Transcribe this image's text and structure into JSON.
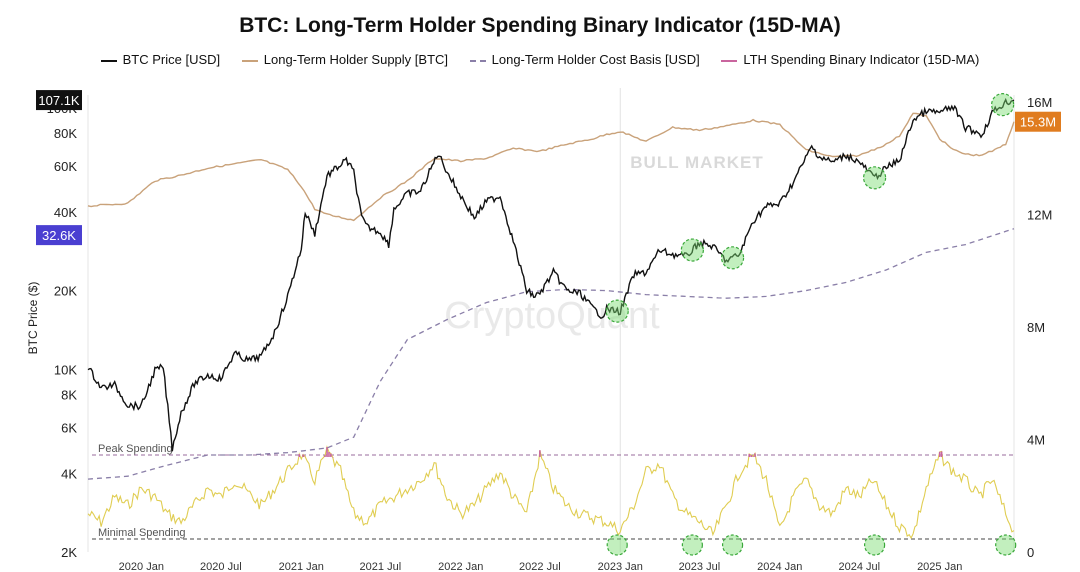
{
  "chart_data": {
    "type": "line",
    "title": "BTC: Long-Term Holder Spending Binary Indicator (15D-MA)",
    "ylabel": "BTC Price ($)",
    "y_left_scale": "log",
    "y_left_ticks": [
      {
        "value": 2000,
        "label": "2K"
      },
      {
        "value": 4000,
        "label": "4K"
      },
      {
        "value": 6000,
        "label": "6K"
      },
      {
        "value": 8000,
        "label": "8K"
      },
      {
        "value": 10000,
        "label": "10K"
      },
      {
        "value": 20000,
        "label": "20K"
      },
      {
        "value": 40000,
        "label": "40K"
      },
      {
        "value": 60000,
        "label": "60K"
      },
      {
        "value": 80000,
        "label": "80K"
      },
      {
        "value": 100000,
        "label": "100K"
      }
    ],
    "y_right_ticks": [
      {
        "value": 0,
        "label": "0"
      },
      {
        "value": 4000000,
        "label": "4M"
      },
      {
        "value": 8000000,
        "label": "8M"
      },
      {
        "value": 12000000,
        "label": "12M"
      },
      {
        "value": 16000000,
        "label": "16M"
      }
    ],
    "x_ticks": [
      "2020 Jan",
      "2020 Jul",
      "2021 Jan",
      "2021 Jul",
      "2022 Jan",
      "2022 Jul",
      "2023 Jan",
      "2023 Jul",
      "2024 Jan",
      "2024 Jul",
      "2025 Jan"
    ],
    "x_tick_dates": [
      "2020-01-01",
      "2020-07-01",
      "2021-01-01",
      "2021-07-01",
      "2022-01-01",
      "2022-07-01",
      "2023-01-01",
      "2023-07-01",
      "2024-01-01",
      "2024-07-01",
      "2025-01-01"
    ],
    "x_range": [
      "2019-09-01",
      "2025-06-20"
    ],
    "legend_position": "top",
    "series": [
      {
        "name": "BTC Price [USD]",
        "axis": "left",
        "color": "#111111",
        "x": [
          "2019-09-01",
          "2019-10-01",
          "2019-11-01",
          "2019-12-01",
          "2020-01-01",
          "2020-02-01",
          "2020-02-20",
          "2020-03-12",
          "2020-04-01",
          "2020-05-01",
          "2020-06-01",
          "2020-07-01",
          "2020-08-01",
          "2020-09-01",
          "2020-10-01",
          "2020-11-01",
          "2020-12-01",
          "2021-01-01",
          "2021-01-10",
          "2021-02-01",
          "2021-03-01",
          "2021-04-14",
          "2021-05-01",
          "2021-05-19",
          "2021-06-01",
          "2021-07-01",
          "2021-07-20",
          "2021-08-01",
          "2021-09-01",
          "2021-10-01",
          "2021-11-10",
          "2021-12-01",
          "2022-01-01",
          "2022-02-01",
          "2022-03-01",
          "2022-04-01",
          "2022-05-01",
          "2022-06-01",
          "2022-06-20",
          "2022-07-01",
          "2022-08-01",
          "2022-09-01",
          "2022-10-01",
          "2022-11-01",
          "2022-11-21",
          "2022-12-01",
          "2023-01-01",
          "2023-02-01",
          "2023-03-01",
          "2023-04-01",
          "2023-05-01",
          "2023-06-01",
          "2023-07-01",
          "2023-08-01",
          "2023-09-01",
          "2023-10-01",
          "2023-11-01",
          "2023-12-01",
          "2024-01-01",
          "2024-02-01",
          "2024-03-14",
          "2024-04-01",
          "2024-05-01",
          "2024-06-01",
          "2024-07-01",
          "2024-08-05",
          "2024-09-01",
          "2024-10-01",
          "2024-11-01",
          "2024-12-01",
          "2025-01-01",
          "2025-02-01",
          "2025-03-01",
          "2025-04-09",
          "2025-05-01",
          "2025-06-01",
          "2025-06-20"
        ],
        "values": [
          10200,
          8500,
          8700,
          7300,
          7200,
          9900,
          10200,
          5000,
          6800,
          8800,
          9500,
          9200,
          11500,
          10800,
          11200,
          13800,
          19000,
          29000,
          40000,
          33000,
          55000,
          63000,
          57000,
          38000,
          35000,
          33500,
          30000,
          41000,
          47000,
          48000,
          67000,
          57000,
          46000,
          38000,
          44000,
          46000,
          31000,
          20000,
          19000,
          19500,
          23500,
          20000,
          19500,
          17000,
          16000,
          17000,
          16600,
          23000,
          23500,
          28500,
          27500,
          27000,
          30500,
          29500,
          26000,
          27500,
          37000,
          42000,
          43000,
          52000,
          71000,
          65000,
          62000,
          66000,
          62000,
          54000,
          59000,
          63000,
          90000,
          97000,
          96000,
          101000,
          84000,
          79000,
          96000,
          105000,
          107100
        ]
      },
      {
        "name": "Long-Term Holder Supply [BTC]",
        "axis": "right",
        "color": "#c9a27a",
        "x": [
          "2019-09-01",
          "2019-12-01",
          "2020-02-01",
          "2020-04-01",
          "2020-06-01",
          "2020-08-01",
          "2020-10-01",
          "2020-12-01",
          "2021-01-01",
          "2021-02-01",
          "2021-03-01",
          "2021-05-01",
          "2021-07-01",
          "2021-09-01",
          "2021-11-01",
          "2022-01-01",
          "2022-03-01",
          "2022-05-01",
          "2022-07-01",
          "2022-09-01",
          "2022-11-01",
          "2022-12-01",
          "2023-01-01",
          "2023-03-01",
          "2023-05-01",
          "2023-07-01",
          "2023-09-01",
          "2023-11-01",
          "2024-01-01",
          "2024-03-01",
          "2024-05-01",
          "2024-07-01",
          "2024-09-01",
          "2024-10-01",
          "2024-11-01",
          "2024-12-01",
          "2025-01-01",
          "2025-02-01",
          "2025-03-01",
          "2025-04-01",
          "2025-05-01",
          "2025-06-01",
          "2025-06-20"
        ],
        "values": [
          12300000,
          12400000,
          13200000,
          13400000,
          13650000,
          13800000,
          13950000,
          13600000,
          13000000,
          12200000,
          12000000,
          11800000,
          12600000,
          13200000,
          14000000,
          13900000,
          14000000,
          14350000,
          14250000,
          14500000,
          14700000,
          14850000,
          14950000,
          14600000,
          15100000,
          15000000,
          15150000,
          15350000,
          15200000,
          14300000,
          14050000,
          14100000,
          14500000,
          14800000,
          15600000,
          15500000,
          14700000,
          14300000,
          14150000,
          14100000,
          14250000,
          14500000,
          15300000
        ]
      },
      {
        "name": "Long-Term Holder Cost Basis [USD]",
        "axis": "left",
        "color": "#8a7fa8",
        "dashed": true,
        "x": [
          "2019-09-01",
          "2019-12-01",
          "2020-03-01",
          "2020-06-01",
          "2020-09-01",
          "2020-12-01",
          "2021-03-01",
          "2021-05-01",
          "2021-07-01",
          "2021-09-01",
          "2021-12-01",
          "2022-03-01",
          "2022-06-01",
          "2022-09-01",
          "2022-12-01",
          "2023-03-01",
          "2023-06-01",
          "2023-09-01",
          "2023-12-01",
          "2024-03-01",
          "2024-06-01",
          "2024-09-01",
          "2024-12-01",
          "2025-03-01",
          "2025-06-20"
        ],
        "values": [
          3800,
          3900,
          4300,
          4700,
          4700,
          4800,
          5000,
          5500,
          9000,
          13000,
          15500,
          18000,
          19800,
          20200,
          20000,
          19300,
          19000,
          18700,
          19000,
          20000,
          21500,
          24000,
          28000,
          30000,
          34500
        ]
      },
      {
        "name": "LTH Spending Binary Indicator (15D-MA)",
        "axis": "indicator",
        "color": "#e0cd52",
        "peak_color": "#c9659e",
        "x": [
          "2019-09-01",
          "2019-10-01",
          "2019-11-01",
          "2019-12-01",
          "2020-01-01",
          "2020-02-01",
          "2020-03-01",
          "2020-04-01",
          "2020-05-01",
          "2020-06-01",
          "2020-07-01",
          "2020-08-01",
          "2020-09-01",
          "2020-10-01",
          "2020-11-01",
          "2020-12-01",
          "2021-01-01",
          "2021-02-01",
          "2021-03-01",
          "2021-04-01",
          "2021-05-01",
          "2021-06-01",
          "2021-07-01",
          "2021-08-01",
          "2021-09-01",
          "2021-10-01",
          "2021-11-01",
          "2021-12-01",
          "2022-01-01",
          "2022-02-01",
          "2022-03-01",
          "2022-04-01",
          "2022-05-01",
          "2022-06-01",
          "2022-07-01",
          "2022-08-01",
          "2022-09-01",
          "2022-10-01",
          "2022-11-01",
          "2022-12-01",
          "2023-01-01",
          "2023-02-01",
          "2023-03-01",
          "2023-04-01",
          "2023-05-01",
          "2023-06-01",
          "2023-07-01",
          "2023-08-01",
          "2023-09-01",
          "2023-10-01",
          "2023-11-01",
          "2023-12-01",
          "2024-01-01",
          "2024-02-01",
          "2024-03-01",
          "2024-04-01",
          "2024-05-01",
          "2024-06-01",
          "2024-07-01",
          "2024-08-01",
          "2024-09-01",
          "2024-10-01",
          "2024-11-01",
          "2024-12-01",
          "2025-01-01",
          "2025-02-01",
          "2025-03-01",
          "2025-04-01",
          "2025-05-01",
          "2025-06-01",
          "2025-06-20"
        ],
        "values": [
          0.3,
          0.2,
          0.5,
          0.4,
          0.6,
          0.5,
          0.3,
          0.2,
          0.4,
          0.6,
          0.5,
          0.7,
          0.55,
          0.4,
          0.6,
          0.8,
          1.0,
          0.7,
          1.05,
          0.8,
          0.3,
          0.2,
          0.4,
          0.5,
          0.6,
          0.7,
          0.9,
          0.5,
          0.3,
          0.4,
          0.6,
          0.8,
          0.5,
          0.3,
          1.0,
          0.6,
          0.4,
          0.3,
          0.25,
          0.2,
          0.1,
          0.4,
          0.8,
          0.9,
          0.5,
          0.3,
          0.2,
          0.05,
          0.4,
          0.8,
          1.0,
          0.7,
          0.1,
          0.5,
          0.7,
          0.4,
          0.3,
          0.6,
          0.5,
          0.7,
          0.4,
          0.15,
          0.05,
          0.6,
          1.0,
          0.8,
          0.7,
          0.5,
          0.7,
          0.3,
          0.1
        ]
      }
    ],
    "reference_lines": [
      {
        "label": "Peak Spending",
        "level": 1.0,
        "color": "#9a6b9c"
      },
      {
        "label": "Minimal Spending",
        "level": 0.0,
        "color": "#444444"
      }
    ],
    "annotations": [
      {
        "text": "BULL MARKET",
        "color": "#d9d9d9"
      },
      {
        "text": "CryptoQuant",
        "kind": "watermark",
        "color": "#e9e9e9"
      }
    ],
    "marker_dates_price": [
      "2022-12-25",
      "2023-06-15",
      "2023-09-15",
      "2024-08-05",
      "2025-05-25"
    ],
    "marker_dates_indicator": [
      "2022-12-25",
      "2023-06-15",
      "2023-09-15",
      "2024-08-05",
      "2025-06-01"
    ],
    "value_badges": [
      {
        "text": "107.1K",
        "axis": "left",
        "value": 107100,
        "color": "#111111"
      },
      {
        "text": "32.6K",
        "axis": "left",
        "value": 32600,
        "color": "#4a3fd1"
      },
      {
        "text": "15.3M",
        "axis": "right",
        "value": 15300000,
        "color": "#e07c1f"
      }
    ],
    "vertical_line_date": "2023-01-01"
  }
}
